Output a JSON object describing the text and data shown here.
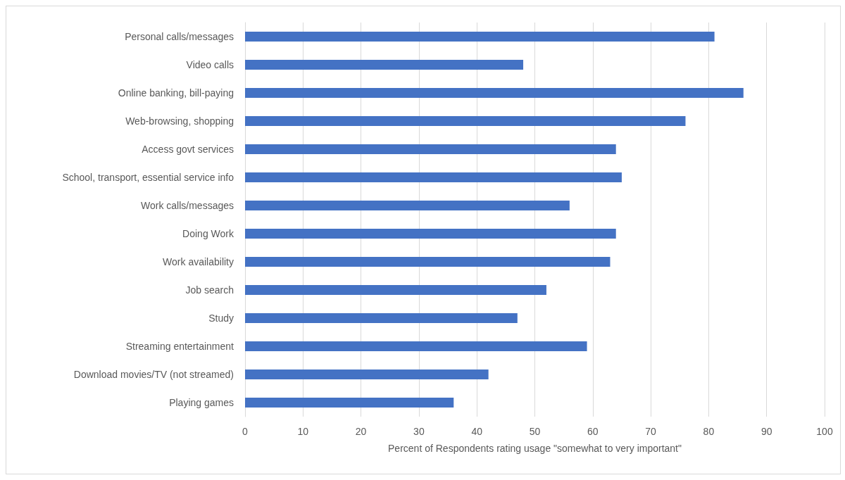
{
  "chart_data": {
    "type": "bar",
    "orientation": "horizontal",
    "xlabel": "Percent of Respondents rating usage \"somewhat to very important\"",
    "categories": [
      "Personal calls/messages",
      "Video calls",
      "Online banking, bill-paying",
      "Web-browsing, shopping",
      "Access govt services",
      "School, transport, essential service info",
      "Work calls/messages",
      "Doing Work",
      "Work availability",
      "Job search",
      "Study",
      "Streaming entertainment",
      "Download movies/TV (not streamed)",
      "Playing games"
    ],
    "values": [
      81,
      48,
      86,
      76,
      64,
      65,
      56,
      64,
      63,
      52,
      47,
      59,
      42,
      36
    ],
    "color": "#4472c4",
    "xlim": [
      0,
      100
    ],
    "xticks": [
      0,
      10,
      20,
      30,
      40,
      50,
      60,
      70,
      80,
      90,
      100
    ],
    "grid": "x"
  }
}
